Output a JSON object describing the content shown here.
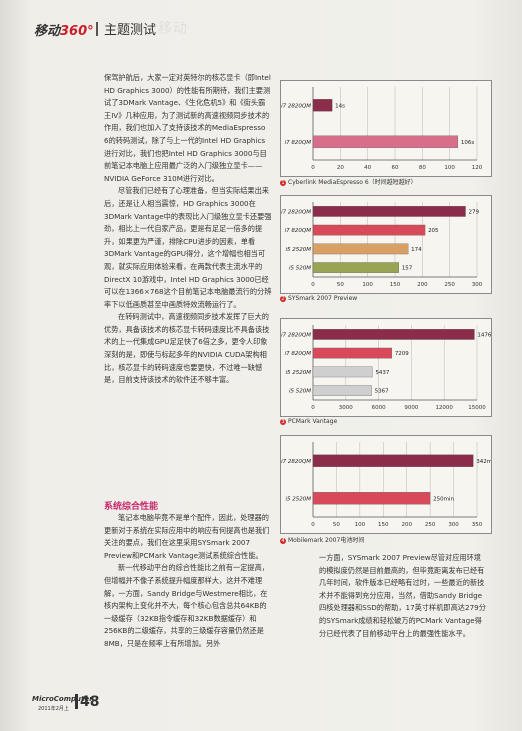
{
  "header": {
    "brand_text": "移动",
    "brand_num": "360°",
    "section": "主题测试",
    "ghost": "移动"
  },
  "body": {
    "p1": "保驾护航后，大家一定对英特尔的核芯显卡（即Intel HD Graphics 3000）的性能有所期待，我们主要测试了3DMark Vantage、《生化危机5》和《街头霸王IV》几种应用，为了测试新的高速视频同步技术的作用，我们也加入了支持该技术的MediaEspresso 6的转码测试，除了与上一代的Intel HD Graphics进行对比，我们也把Intel HD Graphics 3000与目前笔记本电脑上应用最广泛的入门级独立显卡——NVIDIA GeForce 310M进行对比。",
    "p2": "尽管我们已经有了心理准备，但当实际结果出来后，还是让人相当震惊，HD Graphics 3000在3DMark Vantage中的表现比入门级独立显卡还要强劲，相比上一代自家产品，更是有足足一倍多的提升，如果更为严谨，排除CPU进步的因素，单看3DMark Vantage的GPU得分，这个增幅也相当可观，就实际应用体验来看，在两款代表主流水平的DirectX 10游戏中，Intel HD Graphics 3000已经可以在1366×768这个目前笔记本电脑最流行的分辨率下以低画质甚至中画质特效流畅运行了。",
    "p3": "在转码测试中，高速视频同步技术发挥了巨大的优势，具备该技术的核芯显卡转码速度比不具备该技术的上一代集成GPU足足快了6倍之多，更令人印象深刻的是，即使与标起多年的NVIDIA CUDA架构相比，核芯显卡的转码速度也要更快，不过唯一缺憾是，目前支持该技术的软件还不够丰富。",
    "section_title": "系统综合性能",
    "p4": "笔记本电脑毕竟不是单个配件，因此，处理器的更新对于系统在实际应用中的响应有何提高也是我们关注的要点，我们在这里采用SYSmark 2007 Preview和PCMark Vantage测试系统综合性能。",
    "p5": "新一代移动平台的综合性能比之前有一定提高，但增幅并不像子系统提升幅度那样大，这并不难理解，一方面，Sandy Bridge与Westmere相比，在核内架构上变化并不大，每个核心包含总共64KB的一级缓存（32KB指令缓存和32KB数据缓存）和256KB的二级缓存，共享的三级缓存容量仍然还是8MB，只是在频率上有所增加。另外",
    "p6": "一方面，SYSmark 2007 Preview尽管对应用环境的模拟度仍然是目前最高的，但毕竟距离发布已经有几年时间，软件版本已经略有过时，一些最近的新技术并不能得到充分应用，当然，借助Sandy Bridge四核处理器和SSD的帮助，17英寸样机即高达279分的SYSmark成绩和轻松破万的PCMark Vantage得分已经代表了目前移动平台上的最强性能水平。"
  },
  "charts": [
    {
      "caption_num": "1",
      "caption": "Cyberlink MediaEspresso 6（时间越短越好）",
      "chart_data": {
        "type": "bar",
        "orientation": "horizontal",
        "categories": [
          "i7 2820QM",
          "i7 820QM"
        ],
        "values": [
          14,
          106
        ],
        "labels": [
          "14s",
          "106s"
        ],
        "xlim": [
          0,
          120
        ],
        "xticks": [
          0,
          20,
          40,
          60,
          80,
          100,
          120
        ],
        "colors": [
          "#8b2d4a",
          "#d86f8a"
        ]
      }
    },
    {
      "caption_num": "2",
      "caption": "SYSmark 2007 Preview",
      "chart_data": {
        "type": "bar",
        "orientation": "horizontal",
        "categories": [
          "i7 2820QM",
          "i7 820QM",
          "i5 2520M",
          "i5 520M"
        ],
        "values": [
          279,
          205,
          174,
          157
        ],
        "labels": [
          "279",
          "205",
          "174",
          "157"
        ],
        "xlim": [
          0,
          300
        ],
        "xticks": [
          0,
          50,
          100,
          150,
          200,
          250,
          300
        ],
        "colors": [
          "#8b2d4a",
          "#d84a5a",
          "#d9a066",
          "#9aa455"
        ]
      }
    },
    {
      "caption_num": "3",
      "caption": "PCMark Vantage",
      "chart_data": {
        "type": "bar",
        "orientation": "horizontal",
        "categories": [
          "i7 2820QM",
          "i7 820QM",
          "i5 2520M",
          "i5 520M"
        ],
        "values": [
          14765,
          7209,
          5437,
          5367
        ],
        "labels": [
          "14765",
          "7209",
          "5437",
          "5367"
        ],
        "xlim": [
          0,
          15000
        ],
        "xticks": [
          0,
          3000,
          6000,
          9000,
          12000,
          15000
        ],
        "colors": [
          "#8b2d4a",
          "#d84a5a",
          "#cfcfcf",
          "#cfcfcf"
        ]
      }
    },
    {
      "caption_num": "4",
      "caption": "Mobilemark 2007电池时间",
      "chart_data": {
        "type": "bar",
        "orientation": "horizontal",
        "categories": [
          "i7 2820QM",
          "i5 2520M"
        ],
        "values": [
          342,
          250
        ],
        "labels": [
          "342min",
          "250min"
        ],
        "xlim": [
          0,
          350
        ],
        "xticks": [
          0,
          50,
          100,
          150,
          200,
          250,
          300,
          350
        ],
        "colors": [
          "#8b2d4a",
          "#d84a5a"
        ]
      }
    }
  ],
  "footer": {
    "logo": "MicroComputer",
    "date": "2011年2月上",
    "page": "48"
  }
}
